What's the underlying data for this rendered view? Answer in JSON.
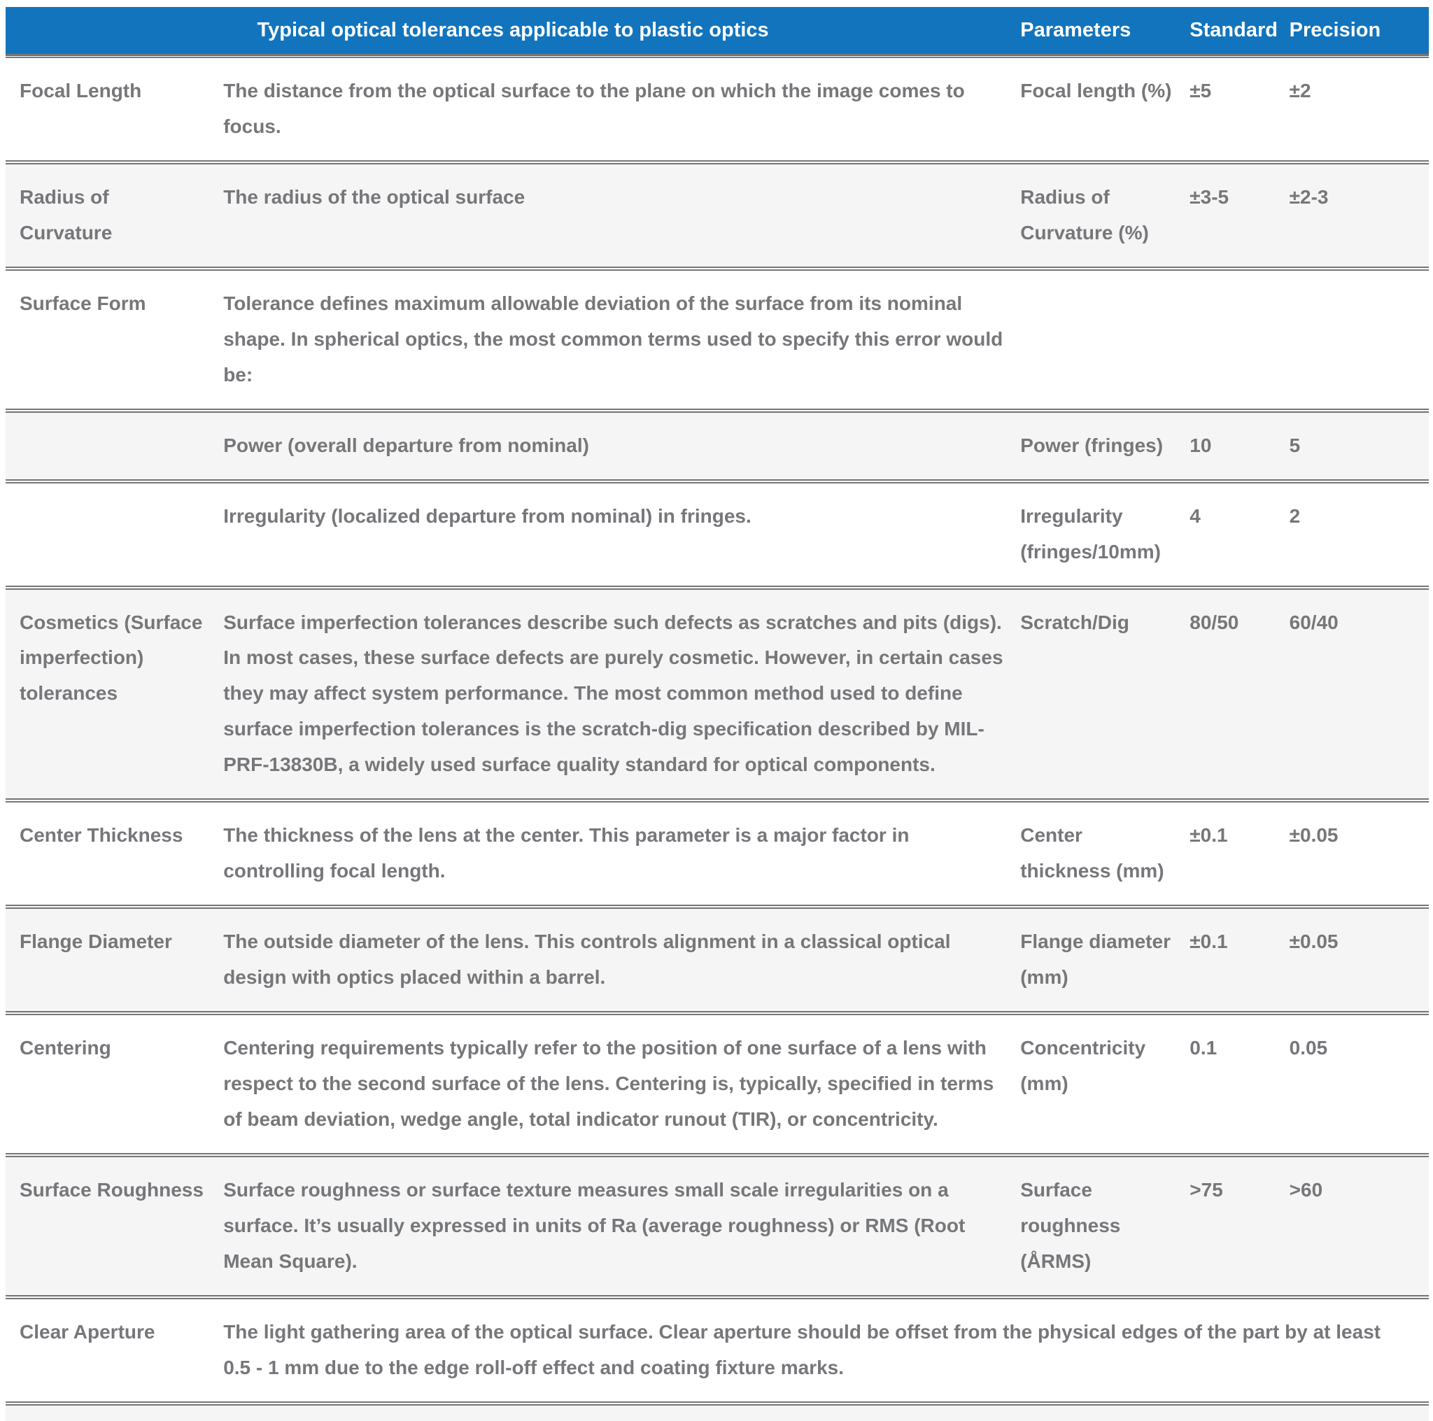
{
  "table": {
    "header": {
      "title": "Typical optical tolerances applicable to plastic optics",
      "columns": [
        "Parameters",
        "Standard",
        "Precision"
      ],
      "background_color": "#1174bd",
      "text_color": "#ffffff"
    },
    "colors": {
      "shaded_row_background": "#f5f5f5",
      "body_text": "#76777a",
      "row_border": "#757575"
    },
    "rows": [
      {
        "term": "Focal Length",
        "description": "The distance from the optical surface to the plane on which the image comes to focus.",
        "parameter": "Focal length (%)",
        "standard": "±5",
        "precision": "±2",
        "shaded": false
      },
      {
        "term": "Radius of Curvature",
        "description": "The radius of the optical surface",
        "parameter": "Radius of Curvature (%)",
        "standard": "±3-5",
        "precision": "±2-3",
        "shaded": true
      },
      {
        "term": "Surface Form",
        "description": "Tolerance defines maximum allowable deviation of the surface from its nominal shape. In spherical optics, the most common terms used to specify this error would be:",
        "parameter": "",
        "standard": "",
        "precision": "",
        "shaded": false
      },
      {
        "term": "",
        "description": "Power (overall departure from nominal)",
        "parameter": "Power (fringes)",
        "standard": "10",
        "precision": "5",
        "shaded": true
      },
      {
        "term": "",
        "description": "Irregularity (localized departure from nominal) in fringes.",
        "parameter": "Irregularity (fringes/10mm)",
        "standard": "4",
        "precision": "2",
        "shaded": false
      },
      {
        "term": "Cosmetics (Surface imperfection) tolerances",
        "description": "Surface imperfection tolerances describe such defects as scratches and pits (digs). In most cases, these surface defects are purely cosmetic. However, in certain cases they may affect system performance. The most common method used to define surface imperfection tolerances is the scratch-dig specification described by MIL-PRF-13830B, a widely used surface quality standard for optical components.",
        "parameter": "Scratch/Dig",
        "standard": "80/50",
        "precision": "60/40",
        "shaded": true
      },
      {
        "term": "Center Thickness",
        "description": "The thickness of the lens at the center. This parameter is a major factor in controlling focal length.",
        "parameter": "Center thickness (mm)",
        "standard": "±0.1",
        "precision": "±0.05",
        "shaded": false
      },
      {
        "term": "Flange Diameter",
        "description": "The outside diameter of the lens. This controls alignment in a classical optical design with optics placed within a barrel.",
        "parameter": "Flange diameter (mm)",
        "standard": "±0.1",
        "precision": "±0.05",
        "shaded": true
      },
      {
        "term": "Centering",
        "description": "Centering requirements typically refer to the position of one surface of a lens with respect to the second surface of the lens. Centering is, typically, specified in terms of beam deviation, wedge angle, total indicator runout (TIR), or concentricity.",
        "parameter": "Concentricity (mm)",
        "standard": "0.1",
        "precision": "0.05",
        "shaded": false
      },
      {
        "term": "Surface Roughness",
        "description": "Surface roughness or surface texture measures small scale irregularities on a surface. It’s usually expressed in units of Ra (average roughness) or RMS (Root Mean Square).",
        "parameter": "Surface roughness (ÅRMS)",
        "standard": ">75",
        "precision": ">60",
        "shaded": true
      },
      {
        "term": "Clear Aperture",
        "description": "The light gathering area of the optical surface. Clear aperture should be offset from the physical edges of the part by at least 0.5 - 1 mm due to the edge roll-off effect and coating fixture marks.",
        "parameter": "",
        "standard": "",
        "precision": "",
        "shaded": false,
        "span_full": true
      },
      {
        "term": "",
        "description": "",
        "parameter": "",
        "standard": "",
        "precision": "",
        "shaded": true,
        "partial": true
      }
    ]
  }
}
